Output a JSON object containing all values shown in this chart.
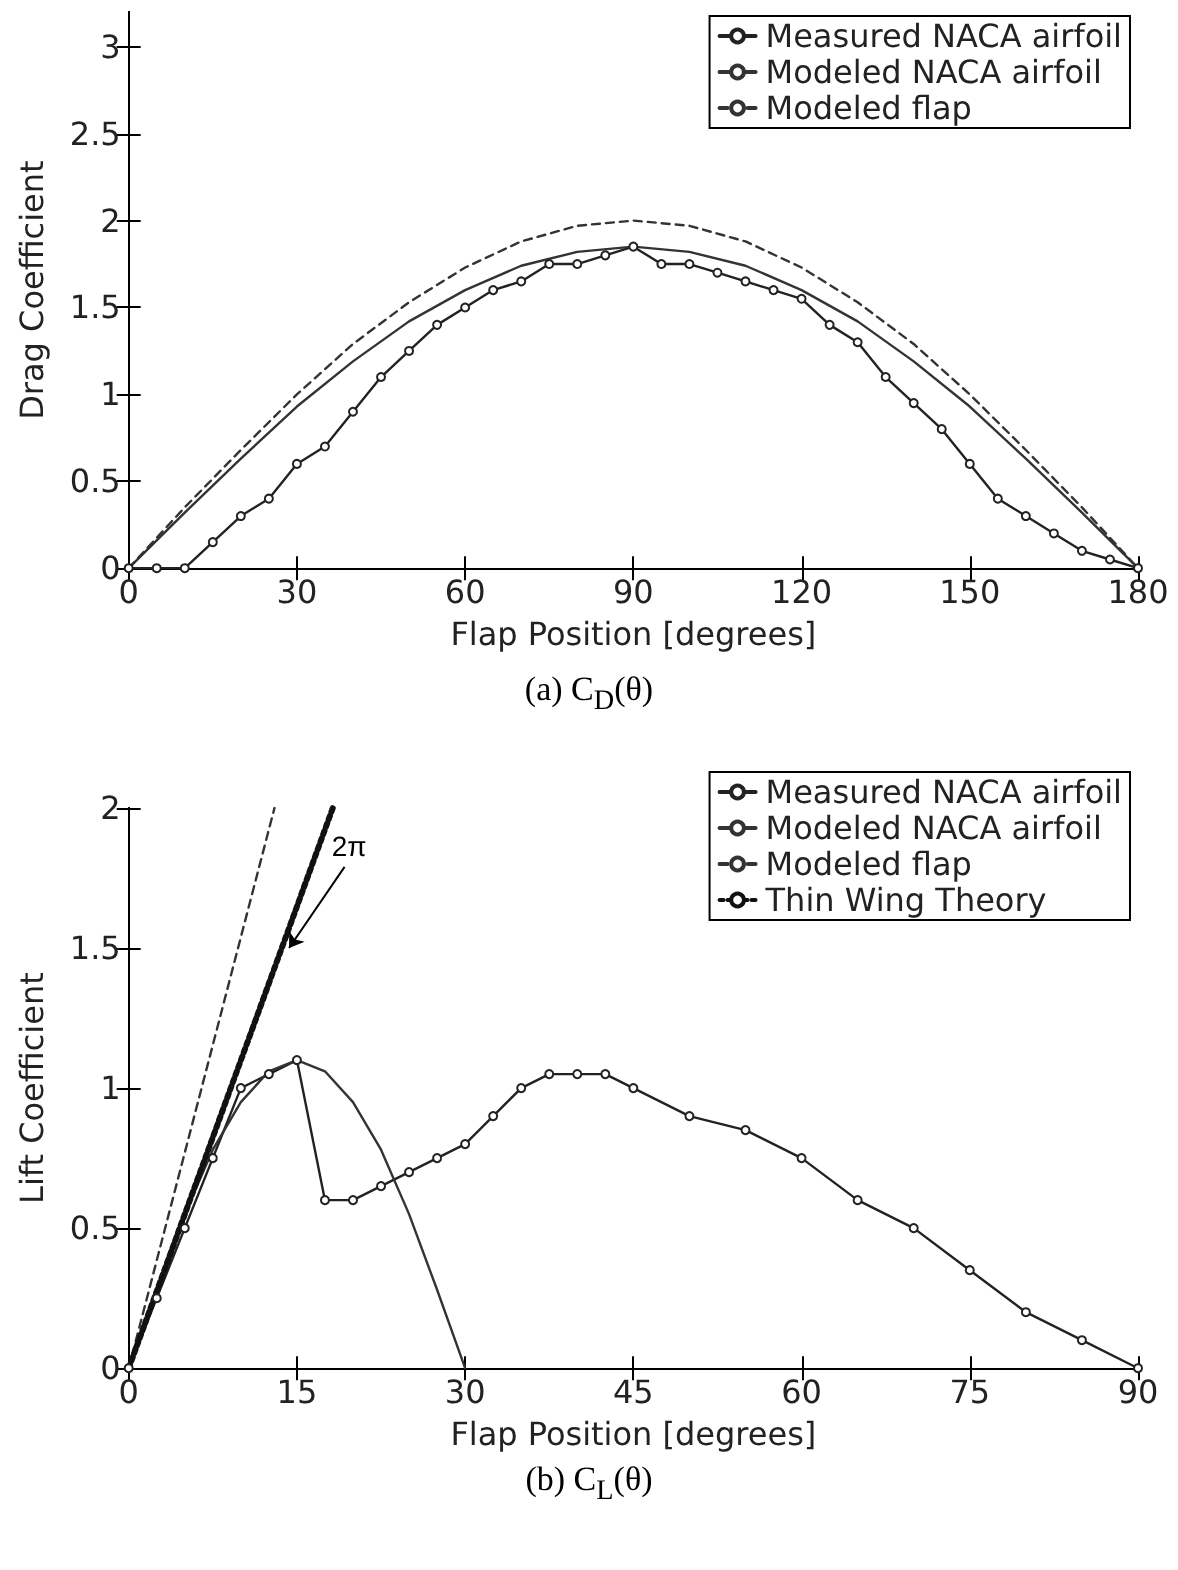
{
  "chart_data": [
    {
      "type": "line",
      "title": "(a) C$_{D}$(θ)",
      "xlabel": "Flap Position [degrees]",
      "ylabel": "Drag Coefficient",
      "xlim": [
        0,
        180
      ],
      "xticks": [
        0,
        30,
        60,
        90,
        120,
        150,
        180
      ],
      "ylim": [
        0,
        3.2
      ],
      "yticks": [
        0,
        0.5,
        1,
        1.5,
        2,
        2.5,
        3
      ],
      "grid": false,
      "legend": "top right",
      "series": [
        {
          "name": "Measured NACA airfoil",
          "color": "#222222",
          "marker": "circle",
          "line_style": "solid",
          "x": [
            0,
            5,
            10,
            15,
            20,
            25,
            30,
            35,
            40,
            45,
            50,
            55,
            60,
            65,
            70,
            75,
            80,
            85,
            90,
            95,
            100,
            105,
            110,
            115,
            120,
            125,
            130,
            135,
            140,
            145,
            150,
            155,
            160,
            165,
            170,
            175,
            180
          ],
          "values": [
            0,
            0,
            0,
            0.15,
            0.3,
            0.4,
            0.6,
            0.7,
            0.9,
            1.1,
            1.25,
            1.4,
            1.5,
            1.6,
            1.65,
            1.75,
            1.75,
            1.8,
            1.85,
            1.75,
            1.75,
            1.7,
            1.65,
            1.6,
            1.55,
            1.4,
            1.3,
            1.1,
            0.95,
            0.8,
            0.6,
            0.4,
            0.3,
            0.2,
            0.1,
            0.05,
            0
          ]
        },
        {
          "name": "Modeled NACA airfoil",
          "color": "#333333",
          "marker": "none",
          "line_style": "solid",
          "x": [
            0,
            10,
            20,
            30,
            40,
            50,
            60,
            70,
            80,
            90,
            100,
            110,
            120,
            130,
            140,
            150,
            160,
            170,
            180
          ],
          "values": [
            0,
            0.32,
            0.63,
            0.93,
            1.19,
            1.42,
            1.6,
            1.74,
            1.82,
            1.85,
            1.82,
            1.74,
            1.6,
            1.42,
            1.19,
            0.93,
            0.63,
            0.32,
            0
          ]
        },
        {
          "name": "Modeled flap",
          "color": "#333333",
          "marker": "none",
          "line_style": "dashed",
          "x": [
            0,
            10,
            20,
            30,
            40,
            50,
            60,
            70,
            80,
            90,
            100,
            110,
            120,
            130,
            140,
            150,
            160,
            170,
            180
          ],
          "values": [
            0,
            0.35,
            0.68,
            1.0,
            1.29,
            1.53,
            1.73,
            1.88,
            1.97,
            2.0,
            1.97,
            1.88,
            1.73,
            1.53,
            1.29,
            1.0,
            0.68,
            0.35,
            0
          ]
        }
      ]
    },
    {
      "type": "line",
      "title": "(b) C$_{L}$(θ)",
      "xlabel": "Flap Position [degrees]",
      "ylabel": "Lift Coefficient",
      "xlim": [
        0,
        90
      ],
      "xticks": [
        0,
        15,
        30,
        45,
        60,
        75,
        90
      ],
      "ylim": [
        0,
        2
      ],
      "yticks": [
        0,
        0.5,
        1,
        1.5,
        2
      ],
      "grid": false,
      "legend": "top right",
      "annotations": [
        {
          "text": "2π",
          "x": 14.3,
          "y": 1.5
        }
      ],
      "series": [
        {
          "name": "Measured NACA airfoil",
          "color": "#222222",
          "marker": "circle",
          "line_style": "solid",
          "x": [
            0,
            2.5,
            5,
            7.5,
            10,
            12.5,
            15,
            17.5,
            20,
            22.5,
            25,
            27.5,
            30,
            32.5,
            35,
            37.5,
            40,
            42.5,
            45,
            50,
            55,
            60,
            65,
            70,
            75,
            80,
            85,
            90
          ],
          "values": [
            0,
            0.25,
            0.5,
            0.75,
            1.0,
            1.05,
            1.1,
            0.6,
            0.6,
            0.65,
            0.7,
            0.75,
            0.8,
            0.9,
            1.0,
            1.05,
            1.05,
            1.05,
            1.0,
            0.9,
            0.85,
            0.75,
            0.6,
            0.5,
            0.35,
            0.2,
            0.1,
            0
          ]
        },
        {
          "name": "Modeled NACA airfoil",
          "color": "#333333",
          "marker": "none",
          "line_style": "solid",
          "x": [
            0,
            2.5,
            5,
            7.5,
            10,
            12.5,
            15,
            17.5,
            20,
            22.5,
            25,
            27.5,
            30
          ],
          "values": [
            0,
            0.28,
            0.55,
            0.78,
            0.95,
            1.06,
            1.1,
            1.06,
            0.95,
            0.78,
            0.55,
            0.28,
            0
          ]
        },
        {
          "name": "Modeled flap",
          "color": "#333333",
          "marker": "none",
          "line_style": "dashed",
          "x": [
            0,
            13
          ],
          "values": [
            0,
            2
          ]
        },
        {
          "name": "Thin Wing Theory",
          "color": "#111111",
          "marker": "none",
          "line_style": "dotted",
          "x": [
            0,
            18.2
          ],
          "values": [
            0,
            2
          ]
        }
      ]
    }
  ]
}
